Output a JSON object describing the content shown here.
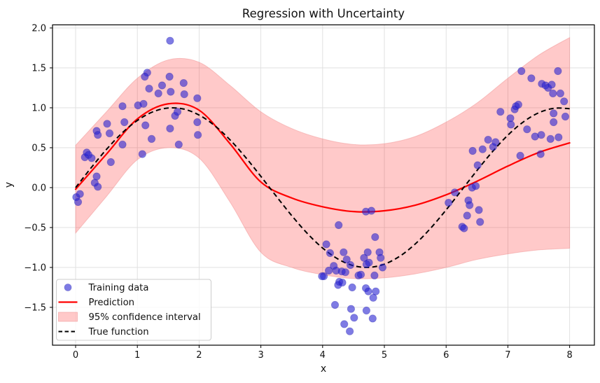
{
  "figure": {
    "background": "#ffffff"
  },
  "chart_data": {
    "type": "scatter+line+area",
    "title": "Regression with Uncertainty",
    "xlabel": "x",
    "ylabel": "y",
    "xlim": [
      -0.374,
      8.401
    ],
    "ylim": [
      -1.974,
      2.039
    ],
    "grid": true,
    "xticks": [
      0,
      1,
      2,
      3,
      4,
      5,
      6,
      7,
      8
    ],
    "xtick_labels": [
      "0",
      "1",
      "2",
      "3",
      "4",
      "5",
      "6",
      "7",
      "8"
    ],
    "yticks": [
      2.0,
      1.5,
      1.0,
      0.5,
      0.0,
      -0.5,
      -1.0,
      -1.5
    ],
    "ytick_labels": [
      "2.0",
      "1.5",
      "1.0",
      "0.5",
      "0.0",
      "−0.5",
      "−1.0",
      "−1.5"
    ],
    "colors": {
      "training_data": "#2823d2",
      "training_data_edge": "#1b16a8",
      "prediction": "#ff0000",
      "confidence_band": "#ff0000",
      "confidence_band_edge": "#f09999",
      "true_function": "#000000",
      "grid": "#dedede",
      "spine": "#000000",
      "legend_border": "#cccccc"
    },
    "alphas": {
      "training_data": 0.6,
      "confidence_band": 0.21
    },
    "legend": {
      "location": "lower left",
      "entries": [
        {
          "type": "marker",
          "series": "training_data",
          "label": "Training data"
        },
        {
          "type": "line",
          "series": "prediction",
          "label": "Prediction"
        },
        {
          "type": "patch",
          "series": "confidence_band",
          "label": "95% confidence interval"
        },
        {
          "type": "dashed-line",
          "series": "true_function",
          "label": "True function"
        }
      ]
    },
    "series": {
      "training_data": {
        "label": "Training data",
        "points": [
          [
            0.01,
            -0.12
          ],
          [
            0.07,
            -0.08
          ],
          [
            0.04,
            -0.18
          ],
          [
            0.15,
            0.38
          ],
          [
            0.18,
            0.44
          ],
          [
            0.21,
            0.41
          ],
          [
            0.26,
            0.37
          ],
          [
            0.34,
            0.14
          ],
          [
            0.31,
            0.06
          ],
          [
            0.36,
            0.01
          ],
          [
            0.51,
            0.8
          ],
          [
            0.34,
            0.71
          ],
          [
            0.36,
            0.66
          ],
          [
            0.55,
            0.68
          ],
          [
            0.57,
            0.32
          ],
          [
            0.76,
            0.54
          ],
          [
            0.79,
            0.82
          ],
          [
            0.76,
            1.02
          ],
          [
            1.01,
            1.03
          ],
          [
            1.16,
            1.44
          ],
          [
            1.12,
            1.39
          ],
          [
            1.19,
            1.24
          ],
          [
            1.4,
            1.28
          ],
          [
            1.34,
            1.18
          ],
          [
            1.52,
            1.39
          ],
          [
            1.54,
            1.2
          ],
          [
            1.1,
            1.05
          ],
          [
            1.13,
            0.78
          ],
          [
            1.23,
            0.61
          ],
          [
            1.08,
            0.42
          ],
          [
            1.75,
            1.31
          ],
          [
            1.76,
            1.17
          ],
          [
            1.97,
            1.12
          ],
          [
            1.61,
            0.9
          ],
          [
            1.65,
            0.95
          ],
          [
            1.53,
            0.74
          ],
          [
            1.67,
            0.54
          ],
          [
            1.97,
            0.82
          ],
          [
            1.98,
            0.66
          ],
          [
            1.53,
            1.84
          ],
          [
            4.7,
            -0.3
          ],
          [
            4.79,
            -0.29
          ],
          [
            4.26,
            -0.47
          ],
          [
            4.85,
            -0.62
          ],
          [
            4.06,
            -0.71
          ],
          [
            4.12,
            -0.82
          ],
          [
            4.34,
            -0.81
          ],
          [
            4.39,
            -0.9
          ],
          [
            4.45,
            -0.97
          ],
          [
            4.18,
            -0.98
          ],
          [
            4.22,
            -1.04
          ],
          [
            4.1,
            -1.04
          ],
          [
            4.02,
            -1.11
          ],
          [
            3.99,
            -1.11
          ],
          [
            4.31,
            -1.05
          ],
          [
            4.37,
            -1.06
          ],
          [
            4.27,
            -1.18
          ],
          [
            4.25,
            -1.22
          ],
          [
            4.32,
            -1.19
          ],
          [
            4.48,
            -1.25
          ],
          [
            4.58,
            -1.1
          ],
          [
            4.62,
            -1.09
          ],
          [
            4.67,
            -0.88
          ],
          [
            4.73,
            -0.81
          ],
          [
            4.75,
            -0.94
          ],
          [
            4.71,
            -0.96
          ],
          [
            4.92,
            -0.81
          ],
          [
            4.94,
            -0.88
          ],
          [
            4.97,
            -1.0
          ],
          [
            4.84,
            -1.1
          ],
          [
            4.7,
            -1.26
          ],
          [
            4.74,
            -1.3
          ],
          [
            4.86,
            -1.3
          ],
          [
            4.82,
            -1.38
          ],
          [
            4.2,
            -1.47
          ],
          [
            4.46,
            -1.52
          ],
          [
            4.71,
            -1.54
          ],
          [
            4.51,
            -1.63
          ],
          [
            4.81,
            -1.64
          ],
          [
            4.35,
            -1.71
          ],
          [
            4.44,
            -1.8
          ],
          [
            6.04,
            -0.19
          ],
          [
            6.14,
            -0.06
          ],
          [
            6.26,
            -0.49
          ],
          [
            6.29,
            -0.51
          ],
          [
            6.36,
            -0.16
          ],
          [
            6.38,
            -0.22
          ],
          [
            6.34,
            -0.35
          ],
          [
            6.53,
            -0.28
          ],
          [
            6.55,
            -0.43
          ],
          [
            6.42,
            0.0
          ],
          [
            6.48,
            0.02
          ],
          [
            6.51,
            0.28
          ],
          [
            6.43,
            0.46
          ],
          [
            6.59,
            0.48
          ],
          [
            6.68,
            0.6
          ],
          [
            6.76,
            0.51
          ],
          [
            6.8,
            0.57
          ],
          [
            6.88,
            0.95
          ],
          [
            7.04,
            0.87
          ],
          [
            7.05,
            0.79
          ],
          [
            7.11,
            0.98
          ],
          [
            7.13,
            1.02
          ],
          [
            7.17,
            1.04
          ],
          [
            7.22,
            1.46
          ],
          [
            7.31,
            0.73
          ],
          [
            7.38,
            1.37
          ],
          [
            7.44,
            0.64
          ],
          [
            7.55,
            1.3
          ],
          [
            7.61,
            1.28
          ],
          [
            7.65,
            1.25
          ],
          [
            7.71,
            1.29
          ],
          [
            7.73,
            1.18
          ],
          [
            7.85,
            1.18
          ],
          [
            7.81,
            1.46
          ],
          [
            7.91,
            1.08
          ],
          [
            7.74,
            0.93
          ],
          [
            7.74,
            0.82
          ],
          [
            7.93,
            0.89
          ],
          [
            7.53,
            0.42
          ],
          [
            7.2,
            0.4
          ],
          [
            7.54,
            0.66
          ],
          [
            7.69,
            0.61
          ],
          [
            7.82,
            0.63
          ]
        ]
      },
      "prediction": {
        "label": "Prediction",
        "x": [
          0,
          0.5,
          1,
          1.5,
          2,
          2.5,
          3,
          3.5,
          4,
          4.5,
          5,
          5.5,
          6,
          6.5,
          7,
          7.5,
          8
        ],
        "y": [
          -0.02,
          0.42,
          0.86,
          1.05,
          0.97,
          0.55,
          0.07,
          -0.13,
          -0.24,
          -0.3,
          -0.29,
          -0.22,
          -0.09,
          0.08,
          0.27,
          0.44,
          0.56
        ]
      },
      "confidence_band": {
        "label": "95% confidence interval",
        "x": [
          0,
          0.5,
          1,
          1.5,
          2,
          2.5,
          3,
          3.5,
          4,
          4.5,
          5,
          5.5,
          6,
          6.5,
          7,
          7.5,
          8
        ],
        "upper": [
          0.53,
          0.95,
          1.37,
          1.6,
          1.57,
          1.28,
          0.95,
          0.74,
          0.61,
          0.54,
          0.55,
          0.64,
          0.82,
          1.06,
          1.37,
          1.66,
          1.88
        ],
        "lower": [
          -0.57,
          -0.11,
          0.35,
          0.5,
          0.37,
          -0.18,
          -0.81,
          -1.0,
          -1.09,
          -1.14,
          -1.13,
          -1.08,
          -1.0,
          -0.9,
          -0.83,
          -0.78,
          -0.76
        ]
      },
      "true_function": {
        "label": "True function",
        "x": [
          0,
          0.25,
          0.5,
          0.75,
          1,
          1.25,
          1.5,
          1.75,
          2,
          2.25,
          2.5,
          2.75,
          3,
          3.25,
          3.5,
          3.75,
          4,
          4.25,
          4.5,
          4.75,
          5,
          5.25,
          5.5,
          5.75,
          6,
          6.25,
          6.5,
          6.75,
          7,
          7.25,
          7.5,
          7.75,
          8
        ],
        "y": [
          0,
          0.247,
          0.479,
          0.682,
          0.841,
          0.949,
          0.997,
          0.984,
          0.909,
          0.778,
          0.599,
          0.382,
          0.141,
          -0.108,
          -0.351,
          -0.572,
          -0.757,
          -0.895,
          -0.978,
          -0.999,
          -0.959,
          -0.859,
          -0.706,
          -0.508,
          -0.279,
          -0.033,
          0.215,
          0.45,
          0.657,
          0.823,
          0.938,
          0.994,
          0.989
        ]
      }
    }
  }
}
